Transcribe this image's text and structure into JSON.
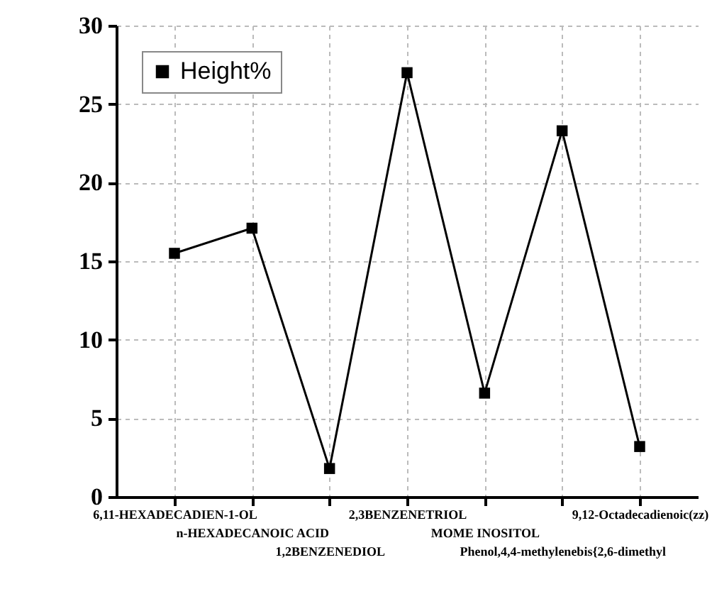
{
  "chart_data": {
    "type": "line",
    "categories": [
      "6,11-HEXADECADIEN-1-OL",
      "n-HEXADECANOIC ACID",
      "1,2BENZENEDIOL",
      "2,3BENZENETRIOL",
      "MOME INOSITOL",
      "Phenol,4,4-methylenebis{2,6-dimethyl",
      "9,12-Octadecadienoic(zz)"
    ],
    "series": [
      {
        "name": "Height%",
        "color": "#000000",
        "values": [
          15.5,
          17.1,
          1.8,
          27.0,
          6.6,
          23.3,
          3.2
        ]
      }
    ],
    "ylim": [
      0,
      30
    ],
    "yticks": [
      0,
      5,
      10,
      15,
      20,
      25,
      30
    ],
    "grid": true,
    "legend": "top left",
    "marker": "square",
    "line_style": "solid"
  }
}
